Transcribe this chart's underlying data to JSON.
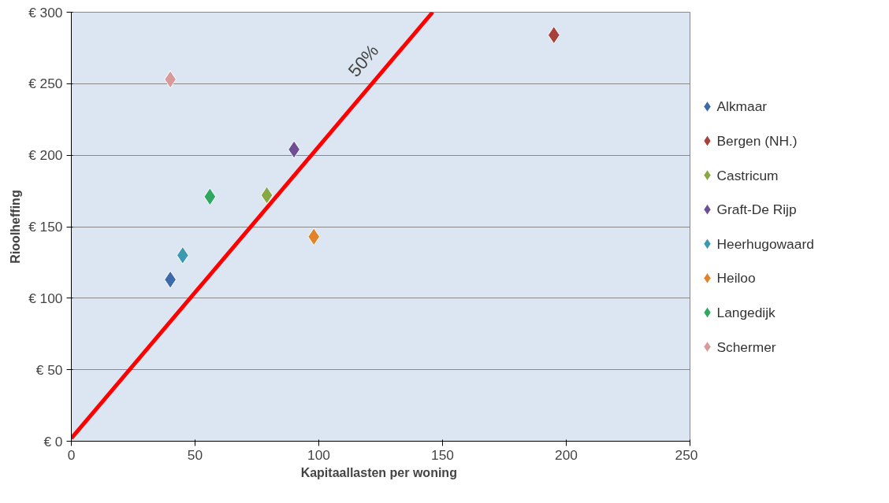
{
  "chart_data": {
    "type": "scatter",
    "xlabel": "Kapitaallasten  per woning",
    "ylabel": "Rioolheffing",
    "xlim": [
      0,
      250
    ],
    "xticks": [
      0,
      50,
      100,
      150,
      200,
      250
    ],
    "ylim": [
      0,
      300
    ],
    "yticks": [
      {
        "value": 0,
        "label": "€ 0"
      },
      {
        "value": 50,
        "label": "€ 50"
      },
      {
        "value": 100,
        "label": "€ 100"
      },
      {
        "value": 150,
        "label": "€ 150"
      },
      {
        "value": 200,
        "label": "€ 200"
      },
      {
        "value": 250,
        "label": "€ 250"
      },
      {
        "value": 300,
        "label": "€ 300"
      }
    ],
    "grid": "y",
    "legend": "right",
    "marker": "diamond",
    "series": [
      {
        "name": "Alkmaar",
        "color": "#3d6aa8",
        "x": [
          40
        ],
        "values": [
          113
        ]
      },
      {
        "name": "Bergen (NH.)",
        "color": "#a8403c",
        "x": [
          195
        ],
        "values": [
          284
        ]
      },
      {
        "name": "Castricum",
        "color": "#88a844",
        "x": [
          79
        ],
        "values": [
          172
        ]
      },
      {
        "name": "Graft-De Rijp",
        "color": "#6e4f94",
        "x": [
          90
        ],
        "values": [
          204
        ]
      },
      {
        "name": "Heerhugowaard",
        "color": "#3b9ab0",
        "x": [
          45
        ],
        "values": [
          130
        ]
      },
      {
        "name": "Heiloo",
        "color": "#e0832a",
        "x": [
          98
        ],
        "values": [
          143
        ]
      },
      {
        "name": "Langedijk",
        "color": "#2fa860",
        "x": [
          56
        ],
        "values": [
          171
        ]
      },
      {
        "name": "Schermer",
        "color": "#d9999a",
        "x": [
          40
        ],
        "values": [
          253
        ]
      },
      {
        "type": "line",
        "color": "#ff0000",
        "x": [
          0,
          146
        ],
        "values": [
          2,
          300
        ],
        "marker": "none"
      }
    ],
    "annotations": [
      "50%"
    ]
  }
}
